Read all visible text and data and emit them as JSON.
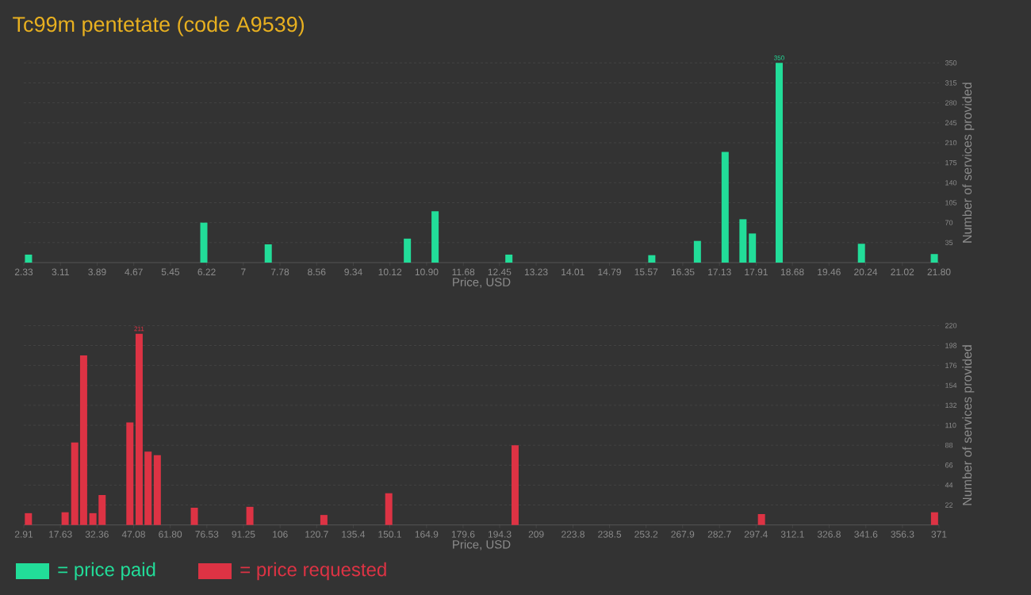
{
  "chart_data": [
    {
      "type": "bar",
      "title": "Tc99m pentetate (code A9539)",
      "xlabel": "Price, USD",
      "ylabel": "Number of services provided",
      "x": [
        2.43,
        6.16,
        7.53,
        10.49,
        11.08,
        12.65,
        15.69,
        16.66,
        17.25,
        17.63,
        17.83,
        18.4,
        20.15,
        21.7
      ],
      "series": [
        {
          "name": "= price paid",
          "color": "#22dd99",
          "values": [
            14,
            70,
            32,
            42,
            90,
            14,
            13,
            38,
            194,
            76,
            51,
            350,
            33,
            15
          ],
          "value_labels": [
            null,
            null,
            null,
            null,
            null,
            null,
            null,
            null,
            null,
            null,
            null,
            "350",
            null,
            null
          ]
        }
      ],
      "xlim": [
        2.33,
        21.8
      ],
      "ylim": [
        0,
        350
      ],
      "xticks": [
        2.33,
        3.11,
        3.89,
        4.67,
        5.45,
        6.22,
        7,
        7.78,
        8.56,
        9.34,
        {
          "value": 10.12,
          "label": "10.12"
        },
        {
          "value": 10.9,
          "label": "10.90"
        },
        11.68,
        12.45,
        13.23,
        14.01,
        14.79,
        15.57,
        16.35,
        17.13,
        17.91,
        18.68,
        19.46,
        20.24,
        21.02,
        {
          "value": 21.8,
          "label": "21.80"
        }
      ],
      "yticks": [
        35,
        70,
        105,
        140,
        175,
        210,
        245,
        280,
        315,
        350
      ],
      "grid": "y",
      "legend": "bottom"
    },
    {
      "type": "bar",
      "xlabel": "Price, USD",
      "ylabel": "Number of services provided",
      "x": [
        4.76,
        19.53,
        23.39,
        26.97,
        30.7,
        34.41,
        45.58,
        49.3,
        52.9,
        56.6,
        71.5,
        93.84,
        123.6,
        149.7,
        200.5,
        299.6,
        369.2
      ],
      "series": [
        {
          "name": "= price requested",
          "color": "#dd3344",
          "values": [
            13,
            14,
            91,
            187,
            13,
            33,
            113,
            211,
            81,
            77,
            19,
            20,
            11,
            35,
            88,
            12,
            14
          ],
          "value_labels": [
            null,
            null,
            null,
            null,
            null,
            null,
            null,
            "211",
            null,
            null,
            null,
            null,
            null,
            null,
            null,
            null,
            null
          ]
        }
      ],
      "xlim": [
        2.91,
        371
      ],
      "ylim": [
        0,
        220
      ],
      "xticks": [
        2.91,
        17.63,
        32.36,
        47.08,
        {
          "value": 61.8,
          "label": "61.80"
        },
        76.53,
        91.25,
        106,
        120.7,
        135.4,
        150.1,
        164.9,
        179.6,
        194.3,
        209,
        223.8,
        238.5,
        253.2,
        267.9,
        282.7,
        297.4,
        312.1,
        326.8,
        341.6,
        356.3,
        371
      ],
      "yticks": [
        22,
        44,
        66,
        88,
        110,
        132,
        154,
        176,
        198,
        220
      ],
      "grid": "y",
      "legend": "bottom"
    }
  ]
}
